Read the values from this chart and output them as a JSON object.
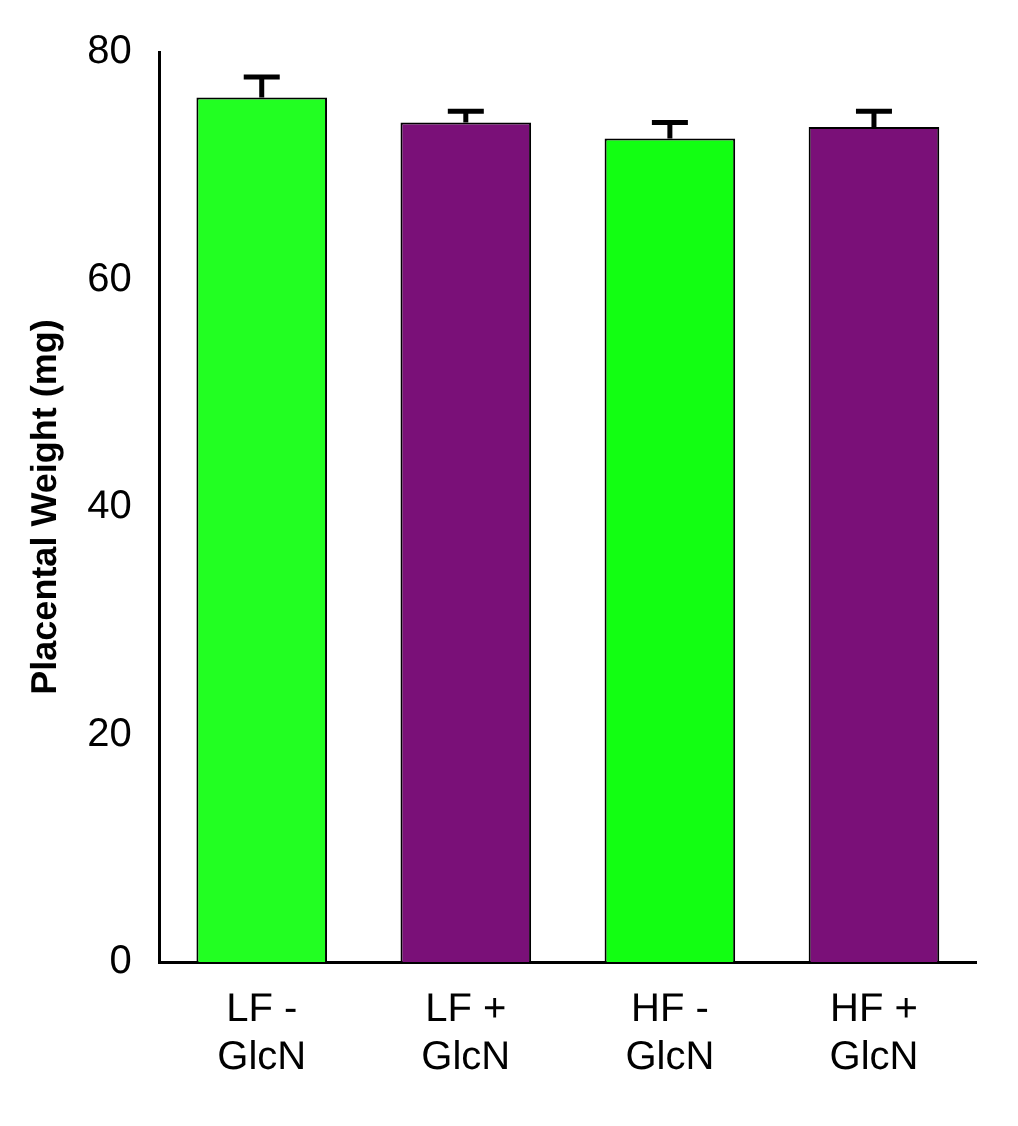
{
  "chart_data": {
    "type": "bar",
    "ylabel": "Placental Weight (mg)",
    "categories": [
      "LF - GlcN",
      "LF + GlcN",
      "HF - GlcN",
      "HF + GlcN"
    ],
    "values": [
      76.0,
      73.8,
      72.4,
      73.4
    ],
    "colors": [
      "#22ff22",
      "#7a1078",
      "#12ff12",
      "#7a1078"
    ],
    "errors": [
      1.8,
      1.0,
      1.4,
      1.4
    ],
    "ylim": [
      0,
      80
    ],
    "yticks": [
      0,
      20,
      40,
      60,
      80
    ],
    "grid": false,
    "legend": false
  }
}
